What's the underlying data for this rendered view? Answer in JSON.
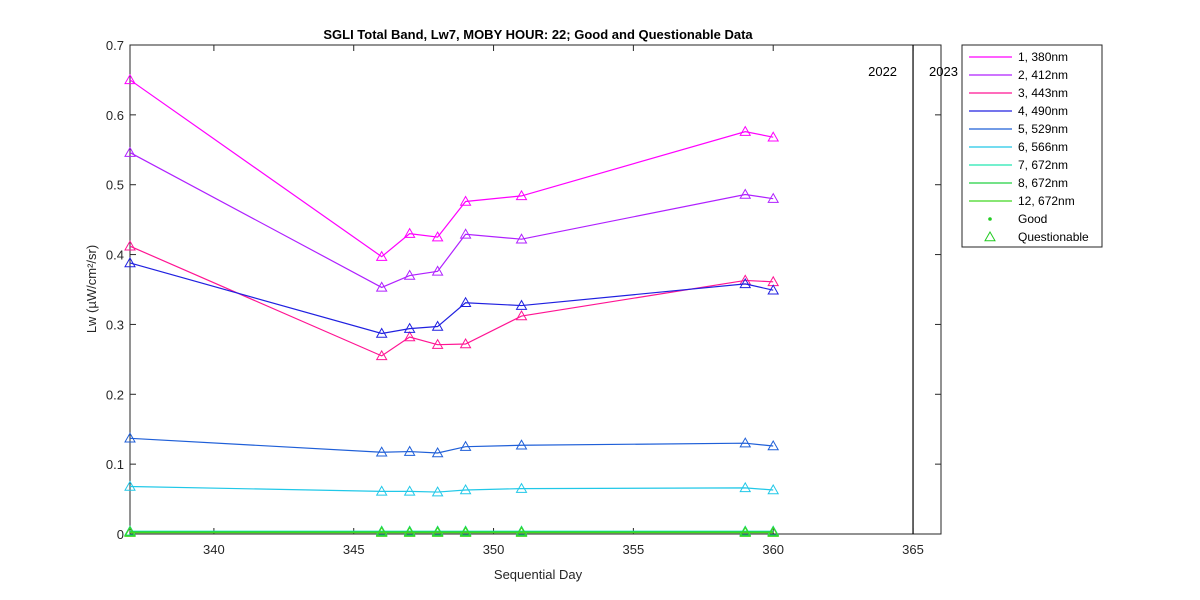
{
  "chart_data": {
    "type": "line",
    "title": "SGLI Total Band,  Lw7, MOBY HOUR: 22;  Good and Questionable Data",
    "xlabel": "Sequential Day",
    "ylabel": "Lw (µW/cm²/sr)",
    "xlim": [
      337,
      366
    ],
    "ylim": [
      0,
      0.7
    ],
    "xticks": [
      340,
      345,
      350,
      355,
      360,
      365
    ],
    "yticks": [
      0,
      0.1,
      0.2,
      0.3,
      0.4,
      0.5,
      0.6,
      0.7
    ],
    "xtick_labels": [
      "340",
      "345",
      "350",
      "355",
      "360",
      "365"
    ],
    "ytick_labels": [
      "0",
      "0.1",
      "0.2",
      "0.3",
      "0.4",
      "0.5",
      "0.6",
      "0.7"
    ],
    "grid": false,
    "legend_position": "outside-top-right",
    "year_divider": {
      "x": 365,
      "left_label": "2022",
      "right_label": "2023"
    },
    "x": [
      337,
      346,
      347,
      348,
      349,
      351,
      359,
      360
    ],
    "series": [
      {
        "name": "1, 380nm",
        "color": "#ff00ff",
        "marker": "triangle",
        "values": [
          0.65,
          0.397,
          0.43,
          0.425,
          0.476,
          0.484,
          0.576,
          0.568
        ]
      },
      {
        "name": "2, 412nm",
        "color": "#b020ff",
        "marker": "triangle",
        "values": [
          0.546,
          0.353,
          0.37,
          0.376,
          0.429,
          0.422,
          0.486,
          0.48
        ]
      },
      {
        "name": "3, 443nm",
        "color": "#ff1493",
        "marker": "triangle",
        "values": [
          0.412,
          0.255,
          0.282,
          0.271,
          0.272,
          0.312,
          0.363,
          0.361
        ]
      },
      {
        "name": "4, 490nm",
        "color": "#2020e0",
        "marker": "triangle",
        "values": [
          0.388,
          0.287,
          0.294,
          0.297,
          0.331,
          0.327,
          0.358,
          0.349
        ]
      },
      {
        "name": "5, 529nm",
        "color": "#1f5fd8",
        "marker": "triangle",
        "values": [
          0.137,
          0.117,
          0.118,
          0.116,
          0.125,
          0.127,
          0.13,
          0.126
        ]
      },
      {
        "name": "6, 566nm",
        "color": "#20c8e8",
        "marker": "triangle",
        "values": [
          0.068,
          0.061,
          0.061,
          0.06,
          0.063,
          0.065,
          0.066,
          0.063
        ]
      },
      {
        "name": "7, 672nm",
        "color": "#20e8b0",
        "marker": "triangle",
        "values": [
          0.004,
          0.004,
          0.004,
          0.004,
          0.004,
          0.004,
          0.004,
          0.004
        ]
      },
      {
        "name": "8, 672nm",
        "color": "#20d040",
        "marker": "triangle",
        "values": [
          0.003,
          0.003,
          0.003,
          0.003,
          0.003,
          0.003,
          0.003,
          0.003
        ]
      },
      {
        "name": "12, 672nm",
        "color": "#40d820",
        "marker": "triangle",
        "values": [
          0.002,
          0.002,
          0.002,
          0.002,
          0.002,
          0.002,
          0.002,
          0.002
        ]
      }
    ],
    "legend_markers": [
      {
        "name": "Good",
        "color": "#22cc22",
        "marker": "dot"
      },
      {
        "name": "Questionable",
        "color": "#22cc22",
        "marker": "triangle"
      }
    ]
  }
}
